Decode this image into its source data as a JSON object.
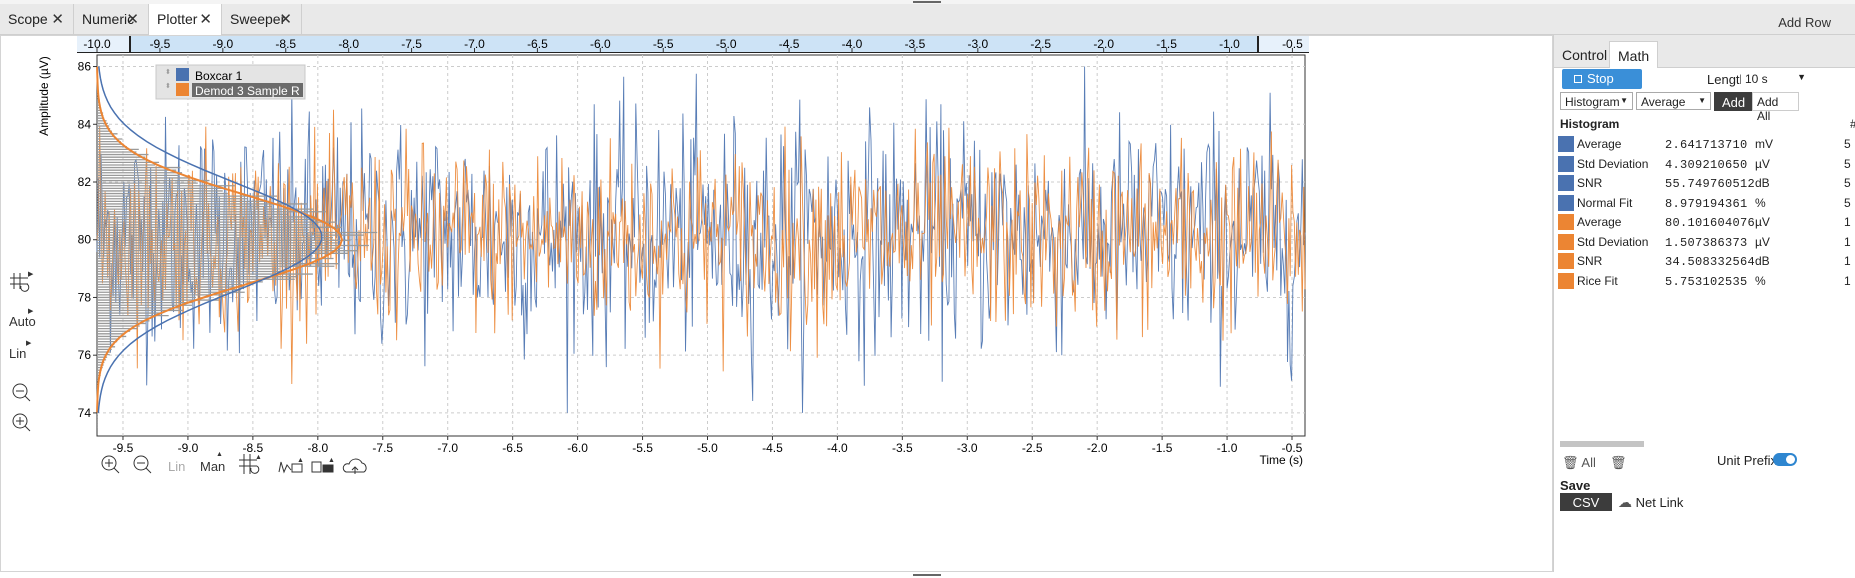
{
  "tabs": [
    {
      "label": "Scope"
    },
    {
      "label": "Numeric"
    },
    {
      "label": "Plotter"
    },
    {
      "label": "Sweeper"
    }
  ],
  "active_tab": "Plotter",
  "add_row_label": "Add Row",
  "close_glyph": "✕",
  "chart": {
    "ylabel": "Amplitude (µV)",
    "xlabel": "Time (s)",
    "y_ticks": [
      "86",
      "84",
      "82",
      "80",
      "78",
      "76",
      "74"
    ],
    "x_ticks": [
      "-9.5",
      "-9.0",
      "-8.5",
      "-8.0",
      "-7.5",
      "-7.0",
      "-6.5",
      "-6.0",
      "-5.5",
      "-5.0",
      "-4.5",
      "-4.0",
      "-3.5",
      "-3.0",
      "-2.5",
      "-2.0",
      "-1.5",
      "-1.0",
      "-0.5"
    ],
    "overview_ticks": [
      "-10.0",
      "-9.5",
      "-9.0",
      "-8.5",
      "-8.0",
      "-7.5",
      "-7.0",
      "-6.5",
      "-6.0",
      "-5.5",
      "-5.0",
      "-4.5",
      "-4.0",
      "-3.5",
      "-3.0",
      "-2.5",
      "-2.0",
      "-1.5",
      "-1.0",
      "-0.5"
    ],
    "legend": [
      {
        "name": "Boxcar 1",
        "color": "#4a72b0"
      },
      {
        "name": "Demod 3 Sample R",
        "color": "#ec8533"
      }
    ]
  },
  "chart_data": {
    "type": "line",
    "xlabel": "Time (s)",
    "ylabel": "Amplitude (µV)",
    "xlim": [
      -9.7,
      -0.4
    ],
    "ylim": [
      73.2,
      86.4
    ],
    "grid": true,
    "legend_position": "top-left",
    "series": [
      {
        "name": "Boxcar 1",
        "color": "#4a72b0",
        "mean": 80.2,
        "std": 2.0,
        "y_range": [
          74.0,
          86.0
        ]
      },
      {
        "name": "Demod 3 Sample R",
        "color": "#ec8533",
        "mean": 80.1,
        "std": 1.6,
        "y_range": [
          75.0,
          84.5
        ]
      }
    ],
    "histogram": {
      "color": "#9a9a9a",
      "center": 80.0
    }
  },
  "left_tools": {
    "auto": "Auto",
    "lin": "Lin"
  },
  "bottom_tools": {
    "lin": "Lin",
    "man": "Man"
  },
  "panel": {
    "tabs": [
      {
        "label": "Control"
      },
      {
        "label": "Math"
      }
    ],
    "active_tab": "Math",
    "stop_label": "Stop",
    "length_label": "Length",
    "length_value": "10 s",
    "math_type": "Histogram",
    "math_op": "Average",
    "add_label": "Add",
    "add_all_label": "Add All",
    "header_label": "Histogram",
    "header_hash": "#",
    "rows": [
      {
        "name": "Average",
        "value": "2.641713710",
        "unit": "mV",
        "cut": "5",
        "color": "#4a72b0"
      },
      {
        "name": "Std Deviation",
        "value": "4.309210650",
        "unit": "µV",
        "cut": "5",
        "color": "#4a72b0"
      },
      {
        "name": "SNR",
        "value": "55.749760512",
        "unit": "dB",
        "cut": "5",
        "color": "#4a72b0"
      },
      {
        "name": "Normal Fit",
        "value": "8.979194361",
        "unit": "%",
        "cut": "5",
        "color": "#4a72b0"
      },
      {
        "name": "Average",
        "value": "80.101604076",
        "unit": "µV",
        "cut": "1",
        "color": "#ec8533"
      },
      {
        "name": "Std Deviation",
        "value": "1.507386373",
        "unit": "µV",
        "cut": "1",
        "color": "#ec8533"
      },
      {
        "name": "SNR",
        "value": "34.508332564",
        "unit": "dB",
        "cut": "1",
        "color": "#ec8533"
      },
      {
        "name": "Rice Fit",
        "value": "5.753102535",
        "unit": "%",
        "cut": "1",
        "color": "#ec8533"
      }
    ],
    "all_label": "All",
    "unit_prefix_label": "Unit Prefix",
    "unit_prefix_on": true,
    "save_label": "Save",
    "csv_label": "CSV",
    "netlink_label": "Net Link"
  }
}
